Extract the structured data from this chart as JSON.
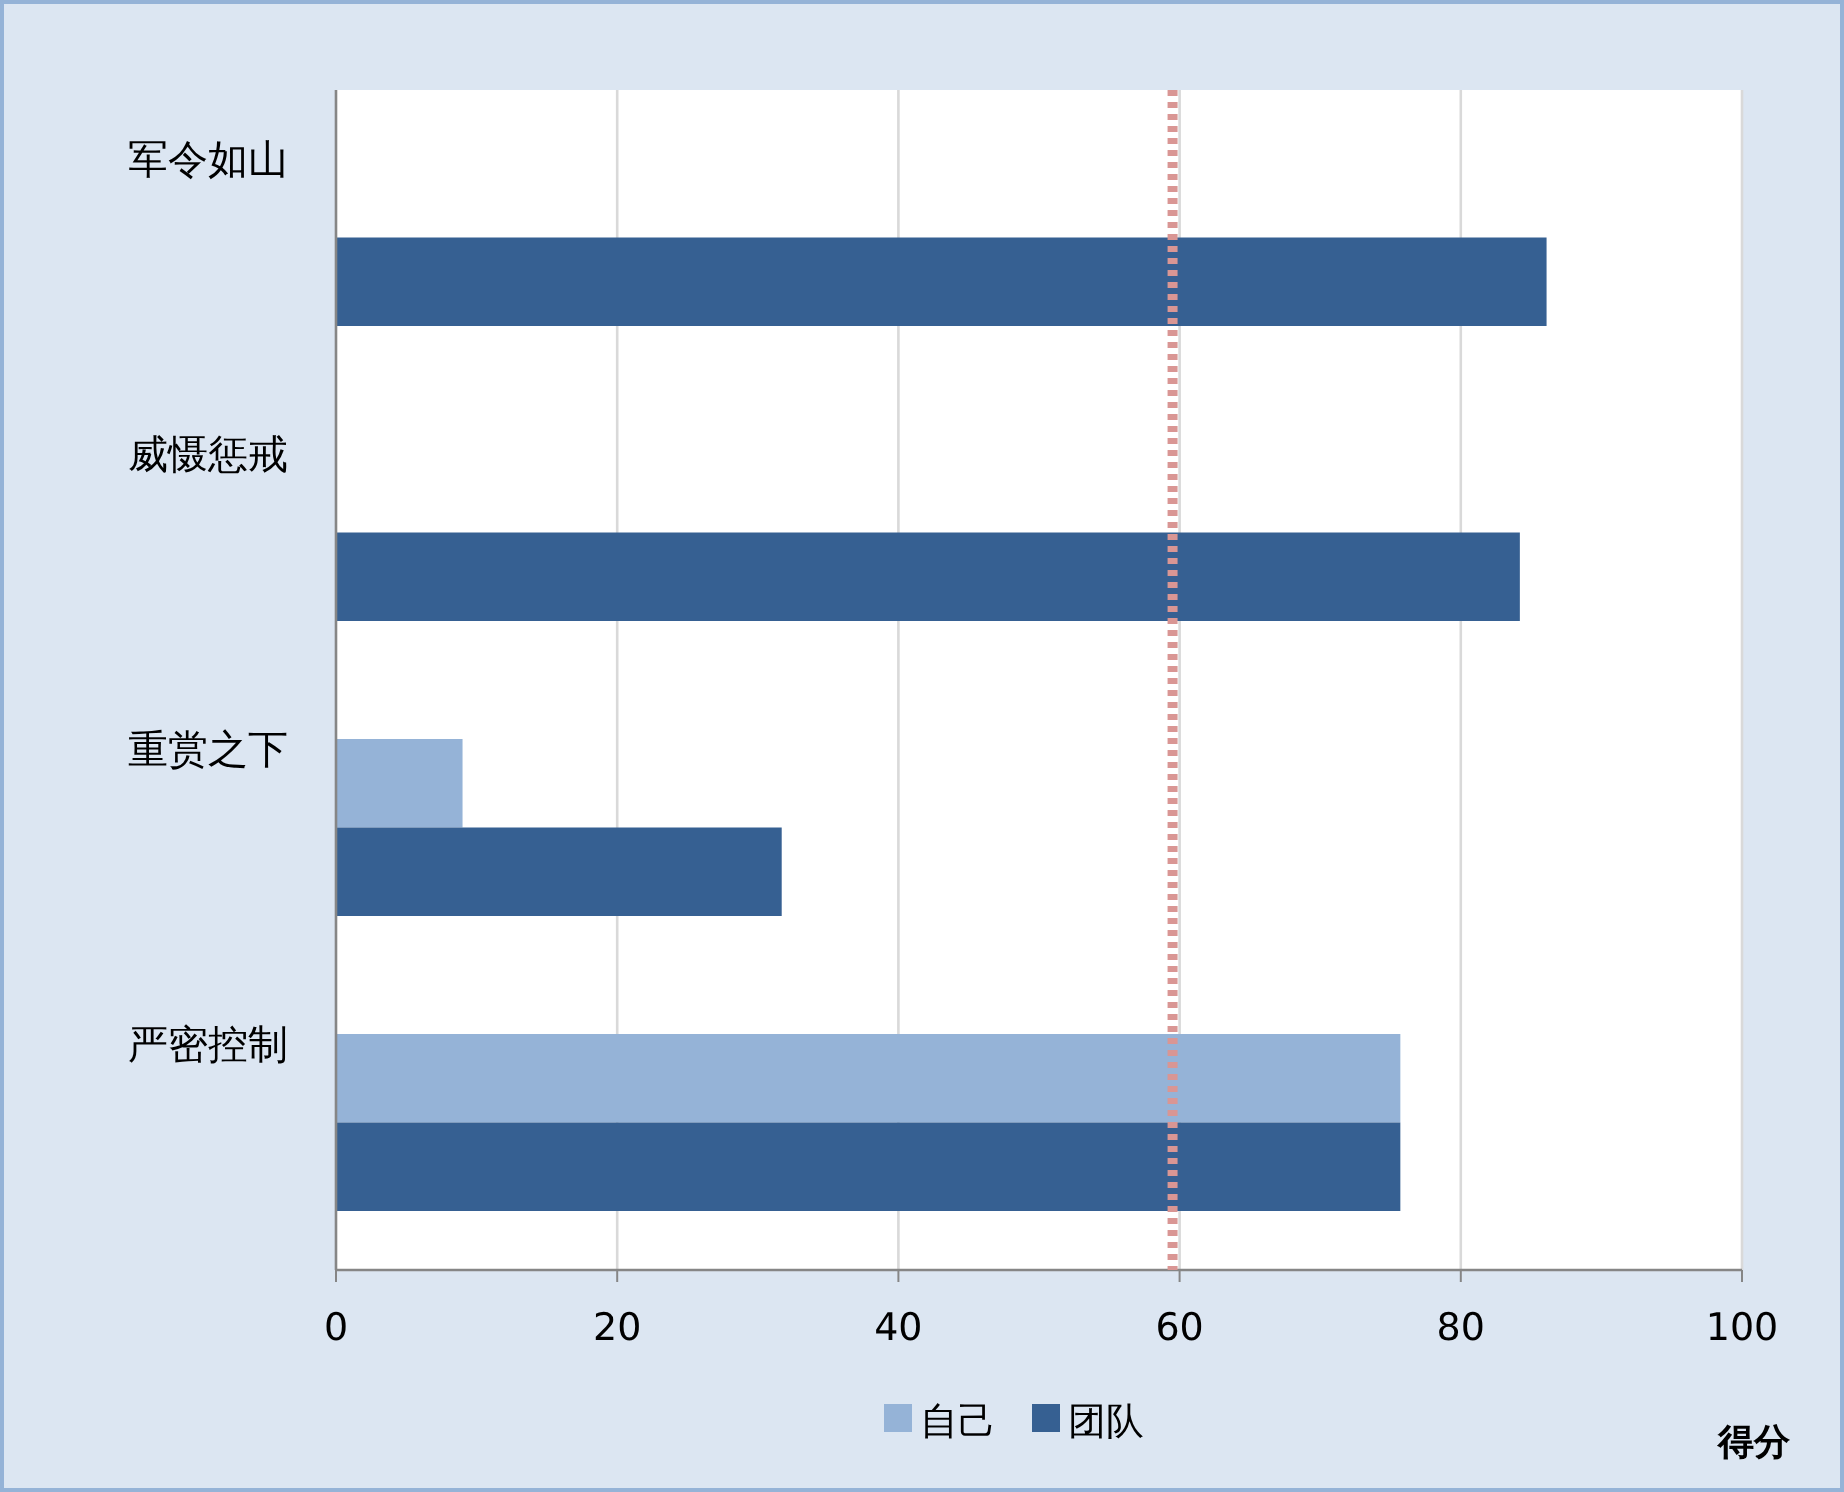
{
  "chart_data": {
    "type": "bar",
    "orientation": "horizontal",
    "xlabel": "得分",
    "categories": [
      "军令如山",
      "威慑惩戒",
      "重赏之下",
      "严密控制"
    ],
    "series": [
      {
        "name": "自己",
        "color": "#95b3d7",
        "values": [
          null,
          null,
          9,
          75.7
        ]
      },
      {
        "name": "团队",
        "color": "#366092",
        "values": [
          86.1,
          84.2,
          31.7,
          75.7
        ]
      }
    ],
    "xlim": [
      0,
      100
    ],
    "xticks": [
      0,
      20,
      40,
      60,
      80,
      100
    ],
    "grid": "x",
    "legend": "bottom",
    "ref_lines": [
      {
        "axis": "x",
        "value": 59.5,
        "color": "#d99694",
        "line_style": "dotted"
      }
    ]
  }
}
